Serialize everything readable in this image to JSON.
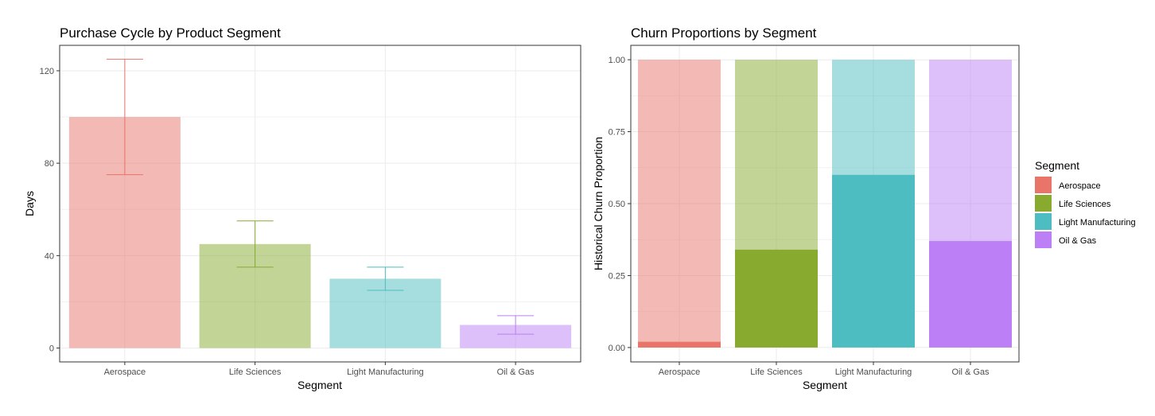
{
  "colors": {
    "Aerospace": "#E8746A",
    "Life Sciences": "#88AA2F",
    "Light Manufacturing": "#4DBDC2",
    "Oil & Gas": "#BC7FF5"
  },
  "chart_data": [
    {
      "type": "bar",
      "title": "Purchase Cycle by Product Segment",
      "xlabel": "Segment",
      "ylabel": "Days",
      "categories": [
        "Aerospace",
        "Life Sciences",
        "Light Manufacturing",
        "Oil & Gas"
      ],
      "values": [
        100,
        45,
        30,
        10
      ],
      "error_low": [
        75,
        35,
        25,
        6
      ],
      "error_high": [
        125,
        55,
        35,
        14
      ],
      "ylim": [
        -6,
        131
      ],
      "yticks": [
        0,
        40,
        80,
        120
      ],
      "ytick_labels": [
        "0",
        "40",
        "80",
        "120"
      ],
      "grid": true
    },
    {
      "type": "bar",
      "title": "Churn Proportions by Segment",
      "xlabel": "Segment",
      "ylabel": "Historical Churn Proportion",
      "categories": [
        "Aerospace",
        "Life Sciences",
        "Light Manufacturing",
        "Oil & Gas"
      ],
      "total": [
        1,
        1,
        1,
        1
      ],
      "values": [
        0.02,
        0.34,
        0.6,
        0.37
      ],
      "ylim": [
        -0.05,
        1.05
      ],
      "yticks": [
        0,
        0.25,
        0.5,
        0.75,
        1
      ],
      "ytick_labels": [
        "0.00",
        "0.25",
        "0.50",
        "0.75",
        "1.00"
      ],
      "grid": true,
      "legend": {
        "title": "Segment",
        "position": "right",
        "entries": [
          "Aerospace",
          "Life Sciences",
          "Light Manufacturing",
          "Oil & Gas"
        ]
      }
    }
  ]
}
